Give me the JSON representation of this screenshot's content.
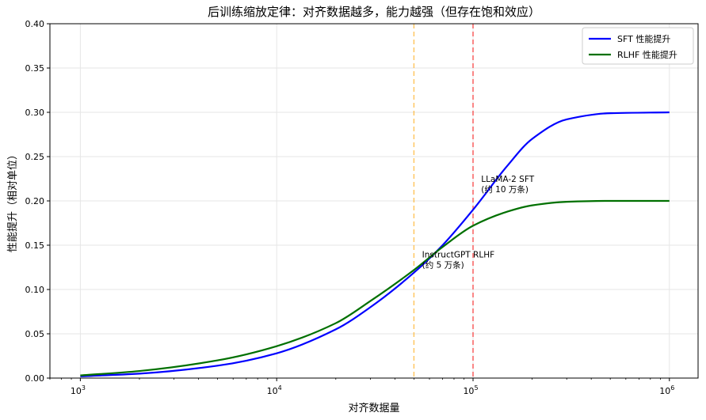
{
  "chart_data": {
    "type": "line",
    "title": "后训练缩放定律：对齐数据越多，能力越强（但存在饱和效应）",
    "xlabel": "对齐数据量",
    "ylabel": "性能提升（相对单位）",
    "xscale": "log",
    "xlim": [
      700,
      1400000
    ],
    "ylim": [
      0,
      0.4
    ],
    "x_ticks": [
      {
        "value": 1000,
        "base": "10",
        "exp": "3"
      },
      {
        "value": 10000,
        "base": "10",
        "exp": "4"
      },
      {
        "value": 100000,
        "base": "10",
        "exp": "5"
      },
      {
        "value": 1000000,
        "base": "10",
        "exp": "6"
      }
    ],
    "y_ticks": [
      "0.00",
      "0.05",
      "0.10",
      "0.15",
      "0.20",
      "0.25",
      "0.30",
      "0.35",
      "0.40"
    ],
    "grid": true,
    "legend_position": "top-right",
    "series": [
      {
        "name": "SFT 性能提升",
        "color": "#0000ff",
        "x": [
          1000,
          2000,
          5000,
          10000,
          20000,
          30000,
          50000,
          70000,
          100000,
          150000,
          200000,
          300000,
          500000,
          1000000
        ],
        "y": [
          0.002,
          0.005,
          0.014,
          0.028,
          0.055,
          0.08,
          0.119,
          0.15,
          0.19,
          0.24,
          0.27,
          0.292,
          0.299,
          0.3
        ]
      },
      {
        "name": "RLHF 性能提升",
        "color": "#007000",
        "x": [
          1000,
          2000,
          5000,
          10000,
          20000,
          30000,
          50000,
          70000,
          100000,
          150000,
          200000,
          300000,
          500000,
          1000000
        ],
        "y": [
          0.003,
          0.008,
          0.02,
          0.036,
          0.062,
          0.087,
          0.122,
          0.148,
          0.172,
          0.188,
          0.195,
          0.199,
          0.2,
          0.2
        ]
      }
    ],
    "reference_lines": [
      {
        "x": 50000,
        "color": "#ffa500",
        "style": "dashed"
      },
      {
        "x": 100000,
        "color": "#ff0000",
        "style": "dashed"
      }
    ],
    "annotations": [
      {
        "x": 55000,
        "y": 0.131,
        "lines": [
          "InstructGPT RLHF",
          "(约 5 万条)"
        ]
      },
      {
        "x": 110000,
        "y": 0.216,
        "lines": [
          "LLaMA-2 SFT",
          "(约 10 万条)"
        ]
      }
    ]
  }
}
